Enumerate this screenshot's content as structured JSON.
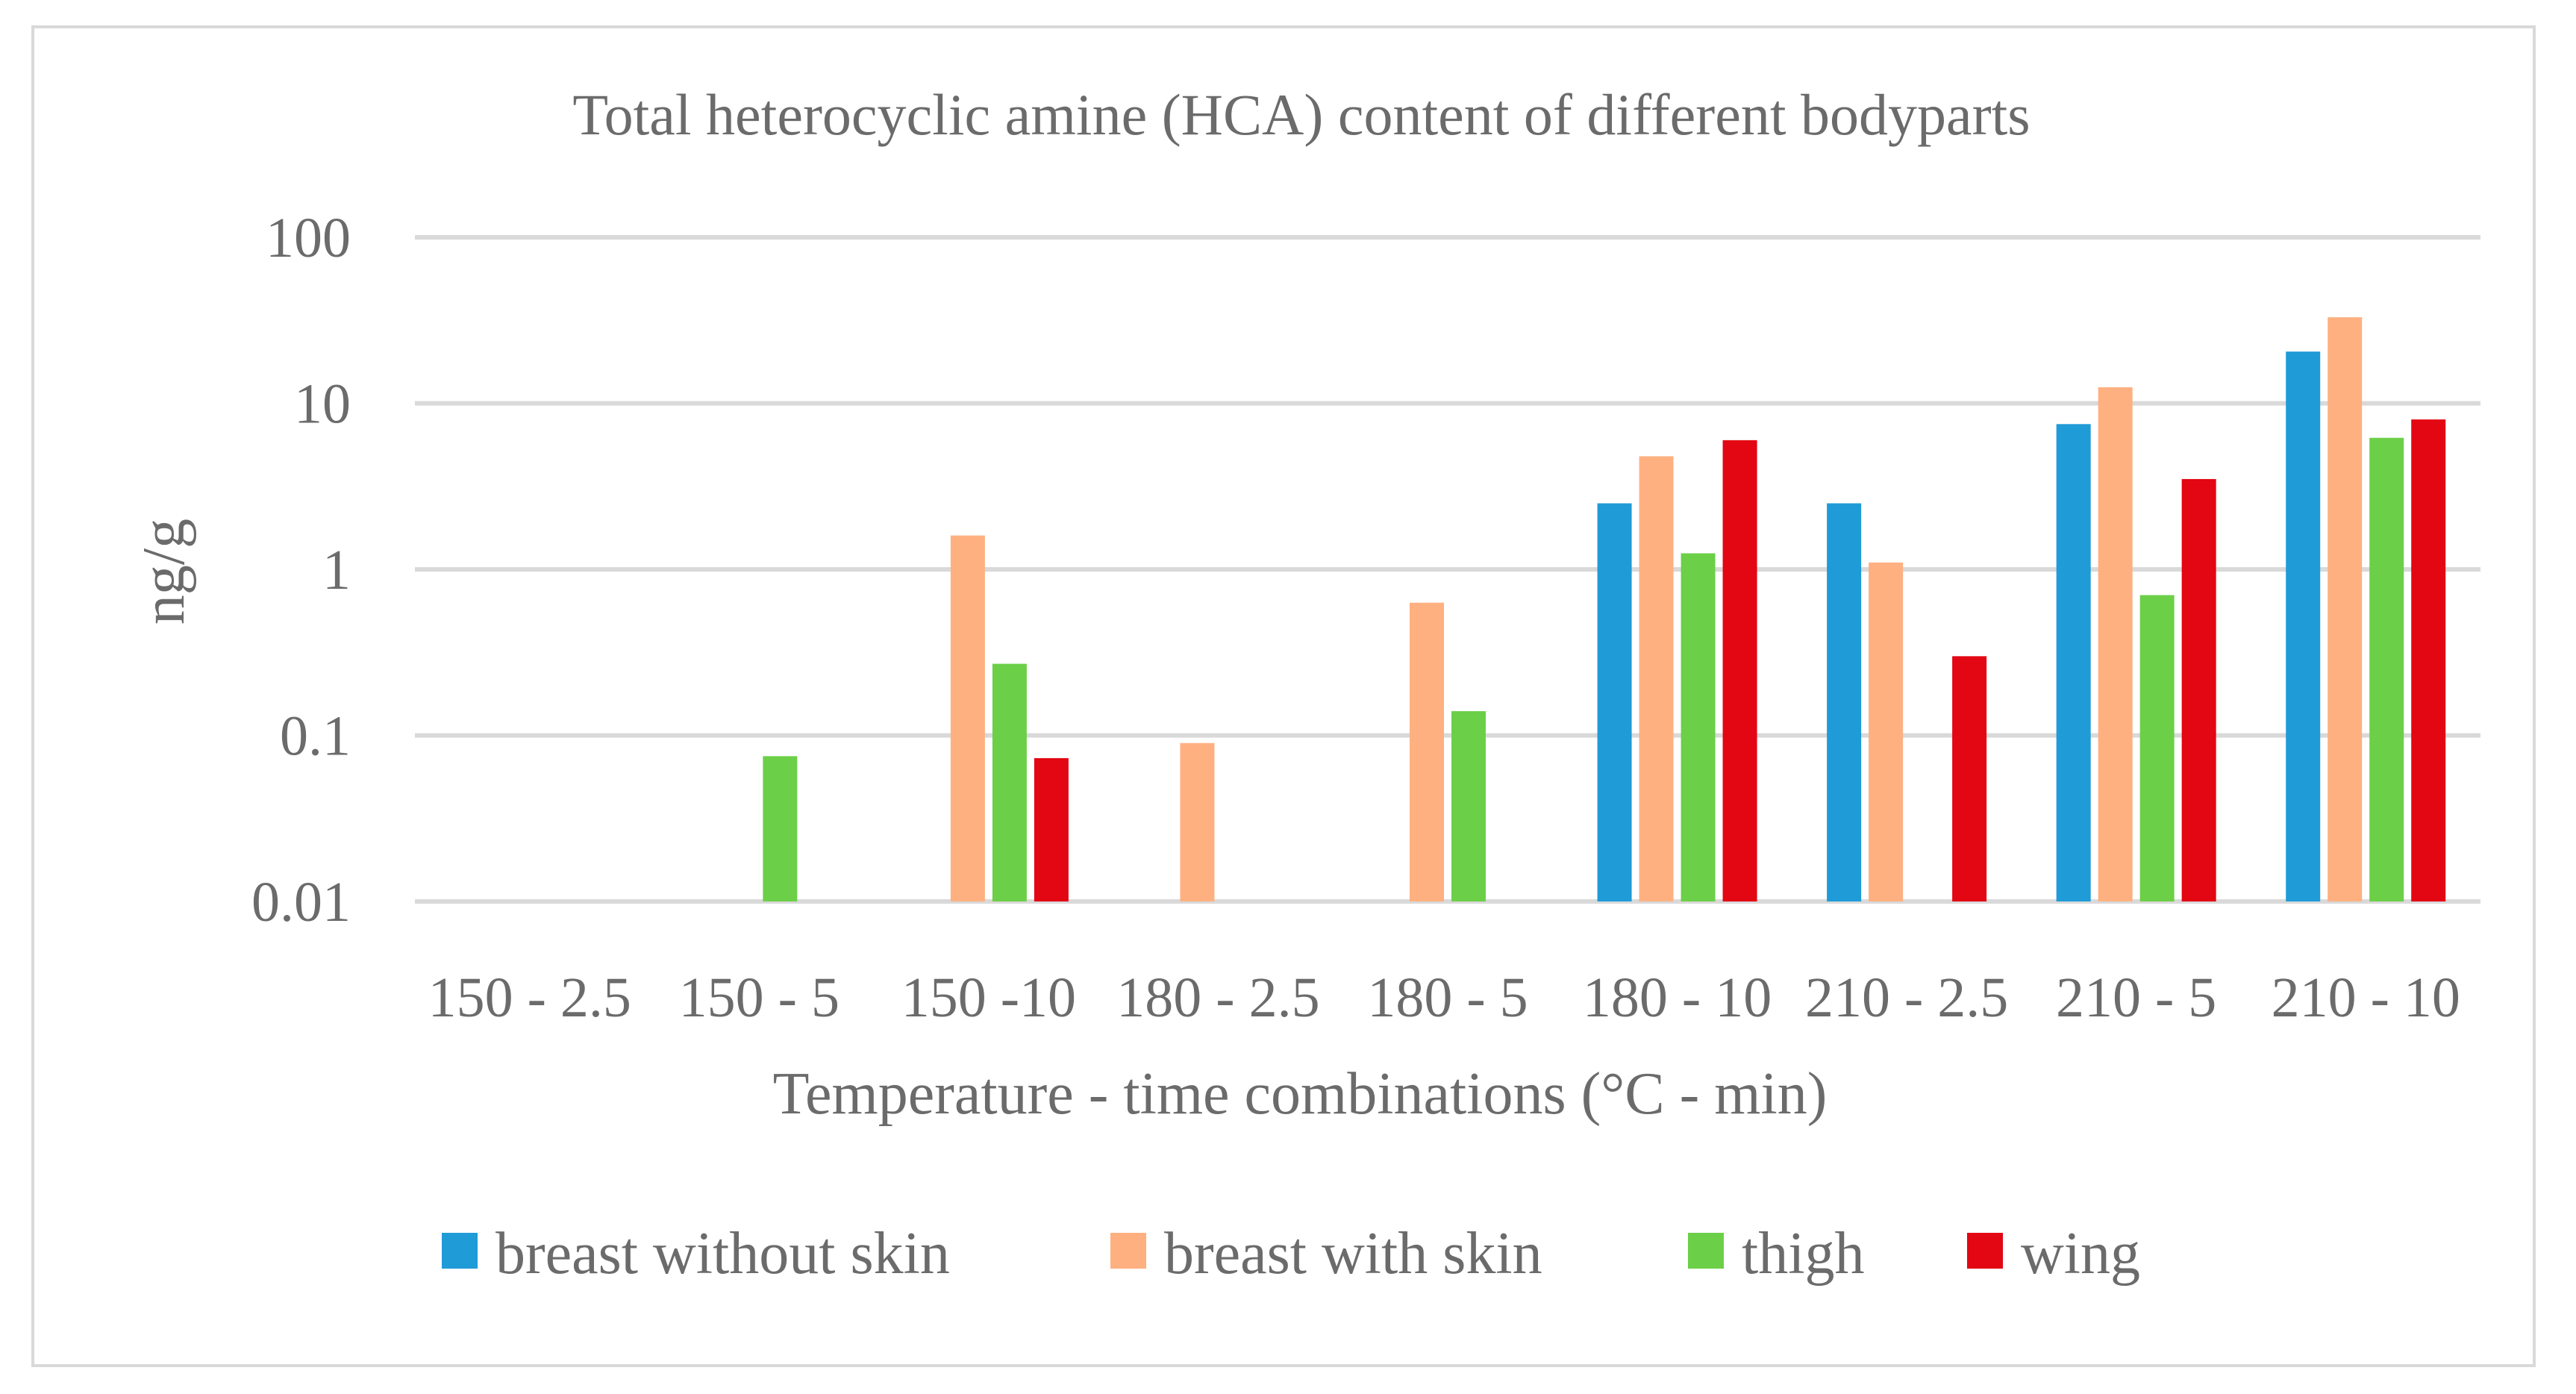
{
  "chart_data": {
    "type": "bar",
    "title": "Total heterocyclic amine (HCA) content of different bodyparts",
    "xlabel": "Temperature - time combinations (°C - min)",
    "ylabel": "ng/g",
    "yscale": "log",
    "ylim": [
      0.01,
      100
    ],
    "yticks": [
      {
        "value": 0.01,
        "label": "0.01"
      },
      {
        "value": 0.1,
        "label": "0.1"
      },
      {
        "value": 1,
        "label": "1"
      },
      {
        "value": 10,
        "label": "10"
      },
      {
        "value": 100,
        "label": "100"
      }
    ],
    "grid": true,
    "legend_position": "bottom",
    "categories": [
      "150 - 2.5",
      "150 - 5",
      "150 -10",
      "180 - 2.5",
      "180 - 5",
      "180 - 10",
      "210 - 2.5",
      "210 - 5",
      "210 - 10"
    ],
    "series": [
      {
        "name": "breast without skin",
        "color": "#1f9bd7",
        "values": [
          null,
          null,
          null,
          null,
          null,
          2.5,
          2.5,
          7.5,
          20.5
        ]
      },
      {
        "name": "breast with skin",
        "color": "#ffb081",
        "values": [
          null,
          null,
          1.6,
          0.09,
          0.63,
          4.8,
          1.1,
          12.5,
          33
        ]
      },
      {
        "name": "thigh",
        "color": "#6ccf48",
        "values": [
          null,
          0.075,
          0.27,
          null,
          0.14,
          1.25,
          null,
          0.7,
          6.2
        ]
      },
      {
        "name": "wing",
        "color": "#e30613",
        "values": [
          null,
          null,
          0.073,
          null,
          null,
          6.0,
          0.3,
          3.5,
          8.0
        ]
      }
    ]
  }
}
